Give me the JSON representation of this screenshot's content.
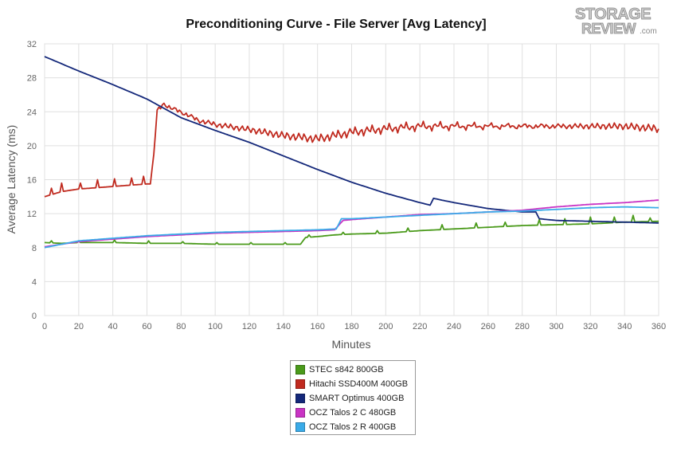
{
  "logo": {
    "top": "STORAGE",
    "bottom": "REVIEW",
    "suffix": ".com"
  },
  "chart_data": {
    "type": "line",
    "title": "Preconditioning Curve - File Server [Avg Latency]",
    "xlabel": "Minutes",
    "ylabel": "Average Latency (ms)",
    "xlim": [
      0,
      360
    ],
    "ylim": [
      0,
      32
    ],
    "xticks": [
      0,
      20,
      40,
      60,
      80,
      100,
      120,
      140,
      160,
      180,
      200,
      220,
      240,
      260,
      280,
      300,
      320,
      340,
      360
    ],
    "yticks": [
      0,
      4,
      8,
      12,
      16,
      20,
      24,
      28,
      32
    ],
    "grid": true,
    "legend_position": "bottom-center",
    "series": [
      {
        "name": "STEC s842 800GB",
        "color": "#4a9a1a",
        "points": [
          [
            0,
            8.6
          ],
          [
            10,
            8.5
          ],
          [
            20,
            8.6
          ],
          [
            40,
            8.6
          ],
          [
            60,
            8.5
          ],
          [
            80,
            8.5
          ],
          [
            100,
            8.4
          ],
          [
            120,
            8.4
          ],
          [
            140,
            8.4
          ],
          [
            150,
            8.4
          ],
          [
            153,
            9.2
          ],
          [
            160,
            9.3
          ],
          [
            170,
            9.5
          ],
          [
            180,
            9.6
          ],
          [
            200,
            9.7
          ],
          [
            220,
            10.0
          ],
          [
            240,
            10.2
          ],
          [
            260,
            10.4
          ],
          [
            280,
            10.6
          ],
          [
            300,
            10.7
          ],
          [
            320,
            10.8
          ],
          [
            340,
            11.0
          ],
          [
            360,
            11.1
          ]
        ],
        "spikes": [
          [
            4,
            8.8
          ],
          [
            20,
            8.8
          ],
          [
            41,
            8.9
          ],
          [
            61,
            8.8
          ],
          [
            81,
            8.7
          ],
          [
            101,
            8.6
          ],
          [
            121,
            8.6
          ],
          [
            141,
            8.6
          ],
          [
            155,
            9.5
          ],
          [
            175,
            9.8
          ],
          [
            195,
            10.0
          ],
          [
            213,
            10.3
          ],
          [
            233,
            10.7
          ],
          [
            253,
            10.9
          ],
          [
            270,
            11.0
          ],
          [
            290,
            11.3
          ],
          [
            305,
            11.4
          ],
          [
            320,
            11.6
          ],
          [
            334,
            11.6
          ],
          [
            345,
            11.8
          ],
          [
            355,
            11.5
          ]
        ]
      },
      {
        "name": "Hitachi SSD400M 400GB",
        "color": "#c02a1f",
        "points": [
          [
            0,
            14.0
          ],
          [
            10,
            14.6
          ],
          [
            20,
            14.9
          ],
          [
            40,
            15.2
          ],
          [
            60,
            15.5
          ],
          [
            62,
            15.5
          ],
          [
            64,
            19.0
          ],
          [
            66,
            24.0
          ],
          [
            70,
            25.0
          ],
          [
            75,
            24.3
          ],
          [
            80,
            24.0
          ],
          [
            90,
            23.0
          ],
          [
            100,
            22.5
          ],
          [
            120,
            21.9
          ],
          [
            140,
            21.2
          ],
          [
            160,
            20.8
          ],
          [
            180,
            21.6
          ],
          [
            200,
            22.0
          ],
          [
            220,
            22.3
          ],
          [
            240,
            22.3
          ],
          [
            260,
            22.3
          ],
          [
            280,
            22.3
          ],
          [
            300,
            22.3
          ],
          [
            320,
            22.3
          ],
          [
            340,
            22.3
          ],
          [
            360,
            22.0
          ]
        ],
        "spikes": [
          [
            4,
            15.0
          ],
          [
            10,
            15.6
          ],
          [
            21,
            15.6
          ],
          [
            31,
            16.0
          ],
          [
            41,
            16.1
          ],
          [
            51,
            16.2
          ],
          [
            58,
            16.4
          ]
        ],
        "noise": 0.6,
        "noise_start": 66
      },
      {
        "name": "SMART Optimus 400GB",
        "color": "#14287a",
        "points": [
          [
            0,
            30.5
          ],
          [
            20,
            28.8
          ],
          [
            40,
            27.2
          ],
          [
            60,
            25.5
          ],
          [
            80,
            23.3
          ],
          [
            100,
            21.8
          ],
          [
            120,
            20.4
          ],
          [
            140,
            18.8
          ],
          [
            160,
            17.2
          ],
          [
            180,
            15.7
          ],
          [
            200,
            14.4
          ],
          [
            220,
            13.3
          ],
          [
            226,
            13.0
          ],
          [
            228,
            13.8
          ],
          [
            240,
            13.3
          ],
          [
            260,
            12.6
          ],
          [
            280,
            12.2
          ],
          [
            288,
            12.2
          ],
          [
            290,
            11.4
          ],
          [
            300,
            11.2
          ],
          [
            320,
            11.1
          ],
          [
            340,
            11.0
          ],
          [
            360,
            10.9
          ]
        ]
      },
      {
        "name": "OCZ Talos 2 C 480GB",
        "color": "#c934c4",
        "points": [
          [
            0,
            8.1
          ],
          [
            20,
            8.7
          ],
          [
            40,
            9.0
          ],
          [
            60,
            9.3
          ],
          [
            80,
            9.5
          ],
          [
            100,
            9.7
          ],
          [
            120,
            9.8
          ],
          [
            140,
            9.9
          ],
          [
            160,
            10.0
          ],
          [
            170,
            10.1
          ],
          [
            175,
            11.2
          ],
          [
            180,
            11.3
          ],
          [
            200,
            11.6
          ],
          [
            220,
            11.9
          ],
          [
            240,
            12.0
          ],
          [
            260,
            12.2
          ],
          [
            280,
            12.4
          ],
          [
            300,
            12.8
          ],
          [
            320,
            13.1
          ],
          [
            340,
            13.3
          ],
          [
            360,
            13.6
          ]
        ]
      },
      {
        "name": "OCZ Talos 2 R 400GB",
        "color": "#3aabe8",
        "points": [
          [
            0,
            8.0
          ],
          [
            20,
            8.8
          ],
          [
            40,
            9.1
          ],
          [
            60,
            9.4
          ],
          [
            80,
            9.6
          ],
          [
            100,
            9.8
          ],
          [
            120,
            9.9
          ],
          [
            140,
            10.0
          ],
          [
            160,
            10.1
          ],
          [
            171,
            10.2
          ],
          [
            174,
            11.4
          ],
          [
            180,
            11.4
          ],
          [
            200,
            11.6
          ],
          [
            220,
            11.8
          ],
          [
            240,
            12.0
          ],
          [
            260,
            12.2
          ],
          [
            280,
            12.3
          ],
          [
            300,
            12.5
          ],
          [
            320,
            12.7
          ],
          [
            340,
            12.8
          ],
          [
            360,
            12.7
          ]
        ]
      }
    ]
  }
}
